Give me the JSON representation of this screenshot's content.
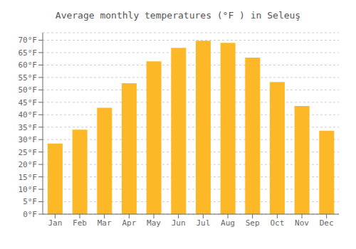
{
  "chart_data": {
    "type": "bar",
    "title": "Average monthly temperatures (°F ) in Seleuş",
    "categories": [
      "Jan",
      "Feb",
      "Mar",
      "Apr",
      "May",
      "Jun",
      "Jul",
      "Aug",
      "Sep",
      "Oct",
      "Nov",
      "Dec"
    ],
    "values": [
      28.4,
      34.0,
      42.8,
      52.7,
      61.5,
      66.9,
      69.8,
      68.9,
      63.0,
      53.2,
      43.5,
      33.6
    ],
    "color": "#FDB827",
    "ylim": [
      0,
      73
    ],
    "yticks": [
      {
        "value": 0,
        "label": "0°F"
      },
      {
        "value": 5,
        "label": "5°F"
      },
      {
        "value": 10,
        "label": "10°F"
      },
      {
        "value": 15,
        "label": "15°F"
      },
      {
        "value": 20,
        "label": "20°F"
      },
      {
        "value": 25,
        "label": "25°F"
      },
      {
        "value": 30,
        "label": "30°F"
      },
      {
        "value": 35,
        "label": "35°F"
      },
      {
        "value": 40,
        "label": "40°F"
      },
      {
        "value": 45,
        "label": "45°F"
      },
      {
        "value": 50,
        "label": "50°F"
      },
      {
        "value": 55,
        "label": "55°F"
      },
      {
        "value": 60,
        "label": "60°F"
      },
      {
        "value": 65,
        "label": "65°F"
      },
      {
        "value": 70,
        "label": "70°F"
      }
    ],
    "grid": true
  }
}
